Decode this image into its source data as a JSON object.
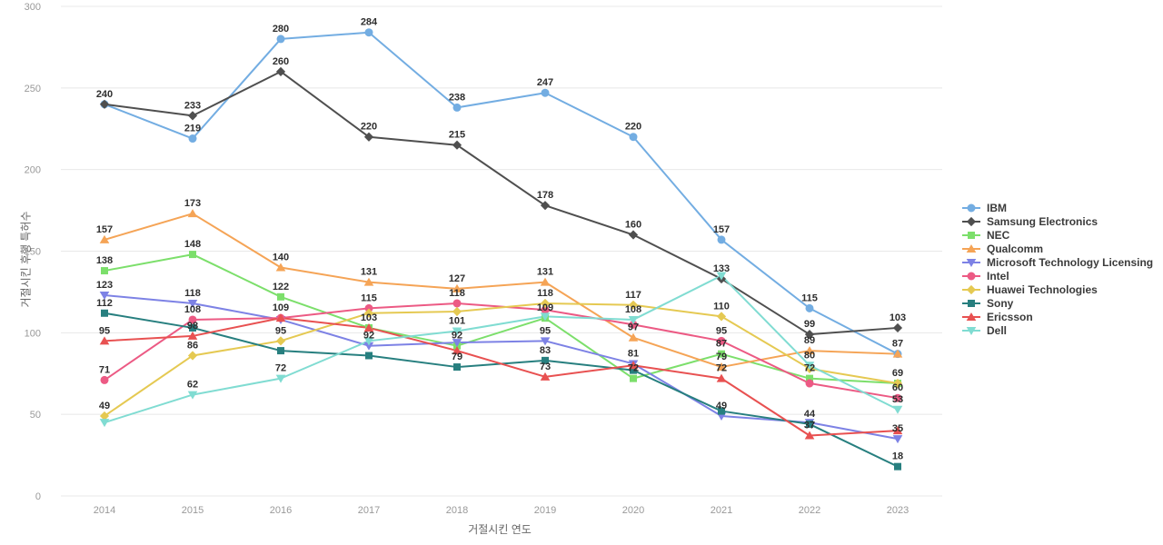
{
  "chart_data": {
    "type": "line",
    "title": "",
    "xlabel": "거절시킨 연도",
    "ylabel": "거절시킨 후행 특허수",
    "x": [
      2014,
      2015,
      2016,
      2017,
      2018,
      2019,
      2020,
      2021,
      2022,
      2023
    ],
    "ylim": [
      0,
      300
    ],
    "yticks": [
      0,
      50,
      100,
      150,
      200,
      250,
      300
    ],
    "grid": "horizontal",
    "legend_position": "right",
    "series": [
      {
        "name": "IBM",
        "color": "#73ADE2",
        "marker": "circle",
        "values": [
          240,
          219,
          280,
          284,
          238,
          247,
          220,
          157,
          115,
          87
        ],
        "label_hidden": []
      },
      {
        "name": "Samsung Electronics",
        "color": "#4F4F4F",
        "marker": "diamond",
        "values": [
          240,
          233,
          260,
          220,
          215,
          178,
          160,
          133,
          99,
          103
        ],
        "label_hidden": [
          0
        ]
      },
      {
        "name": "NEC",
        "color": "#7CDF6B",
        "marker": "square",
        "values": [
          138,
          148,
          122,
          103,
          92,
          109,
          72,
          87,
          72,
          69
        ],
        "label_hidden": [
          9
        ]
      },
      {
        "name": "Qualcomm",
        "color": "#F5A456",
        "marker": "triangle-up",
        "values": [
          157,
          173,
          140,
          131,
          127,
          131,
          97,
          79,
          89,
          87
        ],
        "label_hidden": [
          9
        ]
      },
      {
        "name": "Microsoft Technology Licensing",
        "color": "#7D82E5",
        "marker": "triangle-down",
        "values": [
          123,
          118,
          108,
          92,
          94,
          95,
          81,
          49,
          45,
          35
        ],
        "label_hidden": [
          2,
          4,
          8
        ]
      },
      {
        "name": "Intel",
        "color": "#EC5A84",
        "marker": "circle",
        "values": [
          71,
          108,
          109,
          115,
          118,
          114,
          105,
          95,
          69,
          60
        ],
        "label_hidden": [
          5,
          6,
          8
        ]
      },
      {
        "name": "Huawei Technologies",
        "color": "#E5C952",
        "marker": "diamond",
        "values": [
          49,
          86,
          95,
          112,
          113,
          118,
          117,
          110,
          78,
          69
        ],
        "label_hidden": [
          3,
          4,
          8
        ]
      },
      {
        "name": "Sony",
        "color": "#277F7F",
        "marker": "square",
        "values": [
          112,
          103,
          89,
          86,
          79,
          83,
          77,
          52,
          44,
          18
        ],
        "label_hidden": [
          1,
          2,
          3,
          6,
          7
        ]
      },
      {
        "name": "Ericsson",
        "color": "#E85151",
        "marker": "triangle-up",
        "values": [
          95,
          98,
          109,
          103,
          89,
          73,
          80,
          72,
          37,
          40
        ],
        "label_hidden": [
          2,
          3,
          4,
          6,
          9
        ]
      },
      {
        "name": "Dell",
        "color": "#80DCD2",
        "marker": "triangle-down",
        "values": [
          45,
          62,
          72,
          95,
          101,
          110,
          108,
          135,
          80,
          53
        ],
        "label_hidden": [
          0,
          3,
          5,
          7
        ]
      }
    ]
  }
}
